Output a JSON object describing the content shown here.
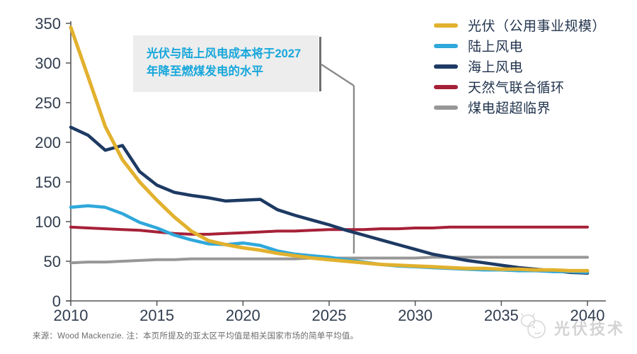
{
  "chart_data": {
    "type": "line",
    "title": "",
    "xlabel": "",
    "ylabel": "",
    "grid": false,
    "legend_position": "top-right",
    "xlim": [
      2010,
      2040
    ],
    "ylim": [
      0,
      350
    ],
    "xticks": [
      2010,
      2015,
      2020,
      2025,
      2030,
      2035,
      2040
    ],
    "yticks": [
      0,
      50,
      100,
      150,
      200,
      250,
      300,
      350
    ],
    "axis_color": "#555555",
    "tick_label_color": "#313D4F",
    "x": [
      2010,
      2011,
      2012,
      2013,
      2014,
      2015,
      2016,
      2017,
      2018,
      2019,
      2020,
      2021,
      2022,
      2023,
      2024,
      2025,
      2026,
      2027,
      2028,
      2029,
      2030,
      2031,
      2032,
      2033,
      2034,
      2035,
      2036,
      2037,
      2038,
      2039,
      2040
    ],
    "series": [
      {
        "name": "光伏（公用事业规模）",
        "color": "#E2B12E",
        "width": 5,
        "values": [
          345,
          283,
          220,
          178,
          150,
          127,
          106,
          88,
          76,
          71,
          67,
          64,
          60,
          57,
          54,
          52,
          50,
          48,
          46,
          45,
          44,
          43,
          42,
          41,
          41,
          40,
          40,
          39,
          39,
          38,
          38
        ]
      },
      {
        "name": "陆上风电",
        "color": "#2FA8DB",
        "width": 4.5,
        "values": [
          118,
          120,
          118,
          110,
          99,
          92,
          83,
          77,
          72,
          71,
          73,
          70,
          63,
          59,
          57,
          55,
          52,
          49,
          46,
          44,
          43,
          42,
          41,
          40,
          39,
          39,
          38,
          38,
          37,
          37,
          36
        ]
      },
      {
        "name": "海上风电",
        "color": "#1D3A63",
        "width": 4.5,
        "values": [
          219,
          209,
          190,
          196,
          163,
          146,
          137,
          133,
          130,
          126,
          127,
          128,
          115,
          108,
          102,
          96,
          89,
          83,
          77,
          71,
          65,
          59,
          55,
          51,
          48,
          45,
          42,
          40,
          38,
          36,
          35
        ]
      },
      {
        "name": "天然气联合循环",
        "color": "#A62138",
        "width": 4,
        "values": [
          93,
          92,
          91,
          90,
          89,
          87,
          85,
          84,
          84,
          85,
          86,
          87,
          88,
          88,
          89,
          90,
          90,
          90,
          91,
          91,
          92,
          92,
          93,
          93,
          93,
          93,
          93,
          93,
          93,
          93,
          93
        ]
      },
      {
        "name": "煤电超超临界",
        "color": "#979797",
        "width": 4,
        "values": [
          48,
          49,
          49,
          50,
          51,
          52,
          52,
          53,
          53,
          53,
          53,
          53,
          53,
          53,
          54,
          54,
          54,
          54,
          54,
          54,
          54,
          55,
          55,
          55,
          55,
          55,
          55,
          55,
          55,
          55,
          55
        ]
      }
    ],
    "draw_order": [
      4,
      3,
      2,
      1,
      0
    ]
  },
  "annotation": {
    "line1": "光伏与陆上风电成本将于2027",
    "line2": "年降至燃煤发电的水平",
    "text_color": "#18A7DB",
    "box_color": "#EDEDED",
    "points_to_year": 2027
  },
  "footer": {
    "source_note": "来源：Wood Mackenzie.  注：本页所提及的亚太区平均值是相关国家市场的简单平均值。",
    "watermark": "光伏技术"
  }
}
